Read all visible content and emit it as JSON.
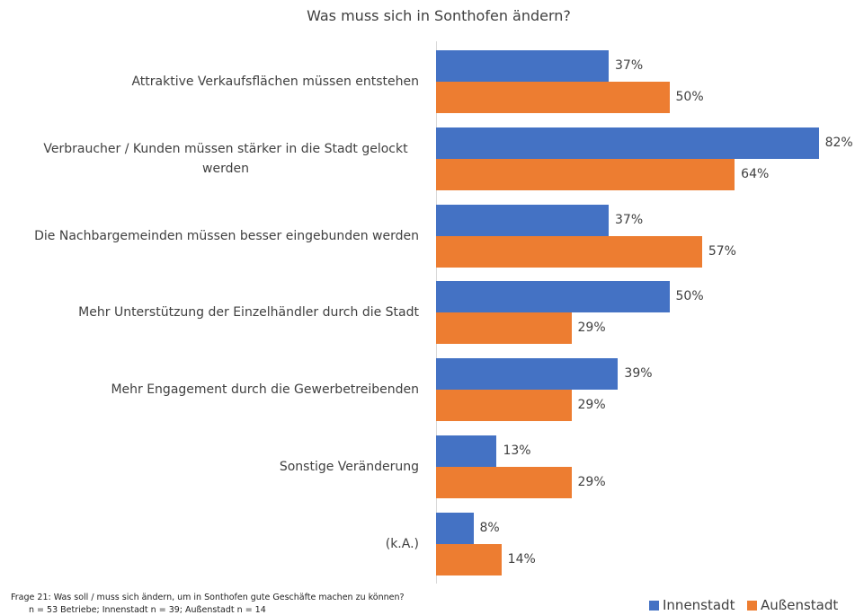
{
  "chart_data": {
    "type": "bar",
    "orientation": "horizontal",
    "title": "Was muss sich in Sonthofen ändern?",
    "categories": [
      "Attraktive Verkaufsflächen müssen entstehen",
      "Verbraucher / Kunden müssen stärker in die Stadt gelockt werden",
      "Die Nachbargemeinden müssen besser eingebunden werden",
      "Mehr Unterstützung der Einzelhändler durch die Stadt",
      "Mehr Engagement durch die Gewerbetreibenden",
      "Sonstige Veränderung",
      "(k.A.)"
    ],
    "series": [
      {
        "name": "Innenstadt",
        "color": "#4472c4",
        "values": [
          37,
          82,
          37,
          50,
          39,
          13,
          8
        ],
        "value_labels": [
          "37%",
          "82%",
          "37%",
          "50%",
          "39%",
          "13%",
          "8%"
        ]
      },
      {
        "name": "Außenstadt",
        "color": "#ed7d31",
        "values": [
          50,
          64,
          57,
          29,
          29,
          29,
          14
        ],
        "value_labels": [
          "50%",
          "64%",
          "57%",
          "29%",
          "29%",
          "29%",
          "14%"
        ]
      }
    ],
    "legend": "bottom-right",
    "footnotes": [
      "Frage 21: Was soll / muss sich ändern, um in Sonthofen gute Geschäfte machen zu können?",
      "n = 53 Betriebe; Innenstadt n = 39; Außenstadt n = 14"
    ]
  }
}
